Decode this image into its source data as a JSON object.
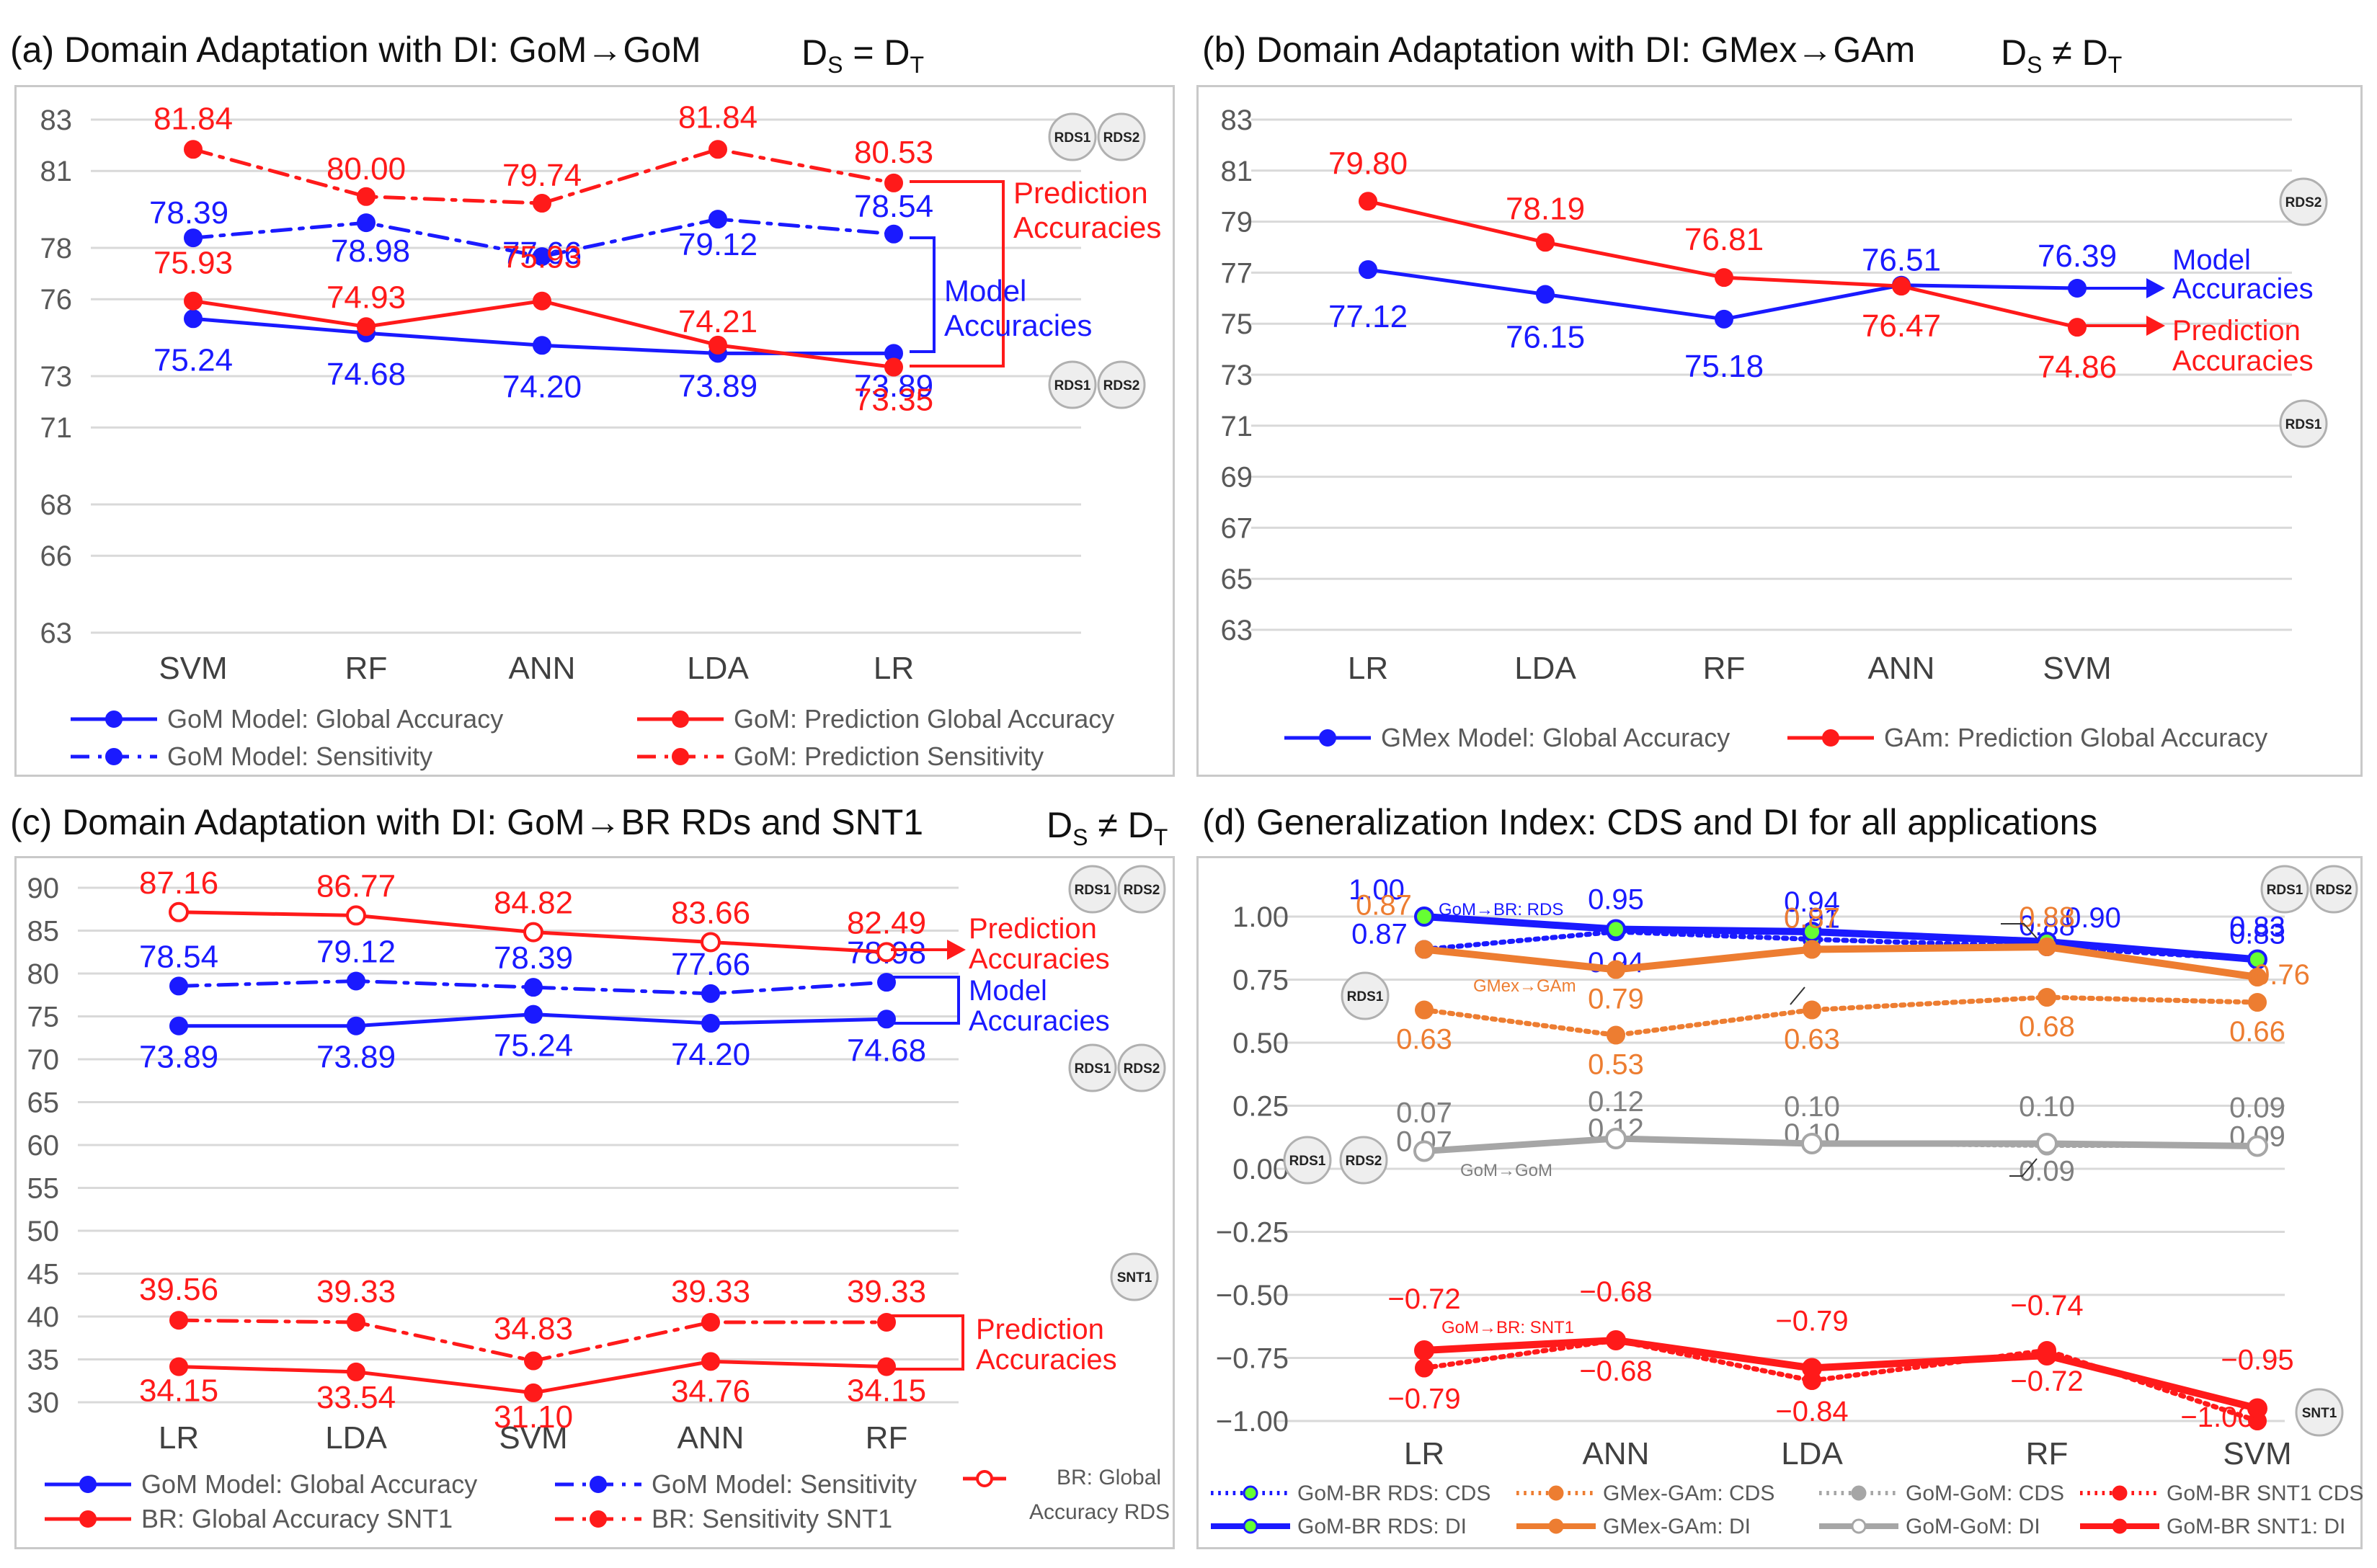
{
  "panels": {
    "a": {
      "title": "(a) Domain Adaptation with DI: GoM→GoM",
      "ds_label": "D",
      "ds_sub1": "S",
      "ds_rel": " = D",
      "ds_sub2": "T"
    },
    "b": {
      "title": "(b) Domain Adaptation with DI: GMex→GAm",
      "ds_label": "D",
      "ds_sub1": "S",
      "ds_rel": " ≠ D",
      "ds_sub2": "T"
    },
    "c": {
      "title": "(c) Domain Adaptation with DI: GoM→BR  RDs  and  SNT1",
      "ds_label": "D",
      "ds_sub1": "S",
      "ds_rel": " ≠ D",
      "ds_sub2": "T"
    },
    "d": {
      "title": "(d) Generalization Index: CDS and DI for all applications"
    }
  },
  "colors": {
    "blue": "#1a1aff",
    "red": "#ff1a1a",
    "orange": "#ed7d31",
    "gray": "#a6a6a6",
    "green": "#66ff33",
    "grid": "#d9d9d9",
    "text": "#595959"
  },
  "chart_data": [
    {
      "id": "a",
      "type": "line",
      "categories": [
        "SVM",
        "RF",
        "ANN",
        "LDA",
        "LR"
      ],
      "yticks": [
        "83",
        "81",
        "78",
        "76",
        "73",
        "71",
        "68",
        "66",
        "63"
      ],
      "ylim": [
        63,
        83
      ],
      "series": [
        {
          "name": "GoM Model: Global Accuracy",
          "color": "#1a1aff",
          "style": "solid",
          "values": [
            75.24,
            74.68,
            74.2,
            73.89,
            73.89
          ],
          "labels": [
            "75.24",
            "74.68",
            "74.20",
            "73.89",
            "73.89"
          ]
        },
        {
          "name": "GoM Model: Sensitivity",
          "color": "#1a1aff",
          "style": "dashdot",
          "values": [
            78.39,
            78.98,
            77.66,
            79.12,
            78.54
          ],
          "labels": [
            "78.39",
            "78.98",
            "77.66",
            "79.12",
            "78.54"
          ]
        },
        {
          "name": "GoM: Prediction Global Accuracy",
          "color": "#ff1a1a",
          "style": "solid",
          "values": [
            75.93,
            74.93,
            75.93,
            74.21,
            73.35
          ],
          "labels": [
            "75.93",
            "74.93",
            "75.93",
            "74.21",
            "73.35"
          ]
        },
        {
          "name": "GoM: Prediction Sensitivity",
          "color": "#ff1a1a",
          "style": "dashdot",
          "values": [
            81.84,
            80.0,
            79.74,
            81.84,
            80.53
          ],
          "labels": [
            "81.84",
            "80.00",
            "79.74",
            "81.84",
            "80.53"
          ]
        }
      ],
      "annotations": {
        "prediction": [
          "Prediction",
          "Accuracies"
        ],
        "model": [
          "Model",
          "Accuracies"
        ],
        "badges_top": [
          "RDS1",
          "RDS2"
        ],
        "badges_bottom": [
          "RDS1",
          "RDS2"
        ]
      }
    },
    {
      "id": "b",
      "type": "line",
      "categories": [
        "LR",
        "LDA",
        "RF",
        "ANN",
        "SVM"
      ],
      "yticks": [
        "83",
        "81",
        "79",
        "77",
        "75",
        "73",
        "71",
        "69",
        "67",
        "65",
        "63"
      ],
      "ylim": [
        63,
        83
      ],
      "series": [
        {
          "name": "GMex Model: Global Accuracy",
          "color": "#1a1aff",
          "style": "solid",
          "values": [
            77.12,
            76.15,
            75.18,
            76.51,
            76.39
          ],
          "labels": [
            "77.12",
            "76.15",
            "75.18",
            "76.51",
            "76.39"
          ]
        },
        {
          "name": "GAm: Prediction Global Accuracy",
          "color": "#ff1a1a",
          "style": "solid",
          "values": [
            79.8,
            78.19,
            76.81,
            76.47,
            74.86
          ],
          "labels": [
            "79.80",
            "78.19",
            "76.81",
            "76.47",
            "74.86"
          ]
        }
      ],
      "annotations": {
        "model": [
          "Model",
          "Accuracies"
        ],
        "prediction": [
          "Prediction",
          "Accuracies"
        ],
        "badge_top": "RDS2",
        "badge_bottom": "RDS1"
      }
    },
    {
      "id": "c",
      "type": "line",
      "categories": [
        "LR",
        "LDA",
        "SVM",
        "ANN",
        "RF"
      ],
      "yticks": [
        "90",
        "85",
        "80",
        "75",
        "70",
        "65",
        "60",
        "55",
        "50",
        "45",
        "40",
        "35",
        "30"
      ],
      "ylim": [
        30,
        90
      ],
      "series": [
        {
          "name": "GoM Model: Global Accuracy",
          "color": "#1a1aff",
          "style": "solid",
          "values": [
            73.89,
            73.89,
            75.24,
            74.2,
            74.68
          ],
          "labels": [
            "73.89",
            "73.89",
            "75.24",
            "74.20",
            "74.68"
          ]
        },
        {
          "name": "GoM Model: Sensitivity",
          "color": "#1a1aff",
          "style": "dashdot",
          "values": [
            78.54,
            79.12,
            78.39,
            77.66,
            78.98
          ],
          "labels": [
            "78.54",
            "79.12",
            "78.39",
            "77.66",
            "78.98"
          ]
        },
        {
          "name": "BR: Global Accuracy RDS",
          "color": "#ff1a1a",
          "style": "solid-open",
          "values": [
            87.16,
            86.77,
            84.82,
            83.66,
            82.49
          ],
          "labels": [
            "87.16",
            "86.77",
            "84.82",
            "83.66",
            "82.49"
          ]
        },
        {
          "name": "BR: Global Accuracy SNT1",
          "color": "#ff1a1a",
          "style": "solid",
          "values": [
            34.15,
            33.54,
            31.1,
            34.76,
            34.15
          ],
          "labels": [
            "34.15",
            "33.54",
            "31.10",
            "34.76",
            "34.15"
          ]
        },
        {
          "name": "BR: Sensitivity SNT1",
          "color": "#ff1a1a",
          "style": "dashdot",
          "values": [
            39.56,
            39.33,
            34.83,
            39.33,
            39.33
          ],
          "labels": [
            "39.56",
            "39.33",
            "34.83",
            "39.33",
            "39.33"
          ]
        }
      ],
      "legend": [
        "GoM Model: Global Accuracy",
        "GoM Model: Sensitivity",
        "BR: Global",
        "Accuracy RDS",
        "BR: Global Accuracy SNT1",
        "BR: Sensitivity SNT1"
      ],
      "annotations": {
        "prediction": [
          "Prediction",
          "Accuracies"
        ],
        "model": [
          "Model",
          "Accuracies"
        ],
        "prediction2": [
          "Prediction",
          "Accuracies"
        ],
        "badges_top": [
          "RDS1",
          "RDS2"
        ],
        "badges_mid": [
          "RDS1",
          "RDS2"
        ],
        "badge_snt": "SNT1"
      }
    },
    {
      "id": "d",
      "type": "line",
      "categories": [
        "LR",
        "ANN",
        "LDA",
        "RF",
        "SVM"
      ],
      "yticks": [
        "1.00",
        "0.75",
        "0.50",
        "0.25",
        "0.00",
        "−0.25",
        "−0.50",
        "−0.75",
        "−1.00"
      ],
      "ylim": [
        -1.0,
        1.0
      ],
      "series": [
        {
          "name": "GoM-BR RDS: CDS",
          "color": "#1a1aff",
          "style": "dotted-green",
          "values": [
            0.87,
            0.94,
            0.91,
            0.88,
            0.83
          ],
          "labels": [
            "0.87",
            "0.94",
            "0.91",
            "0.88",
            "0.83"
          ]
        },
        {
          "name": "GoM-BR RDS: DI",
          "color": "#1a1aff",
          "style": "thick-green",
          "values": [
            1.0,
            0.95,
            0.94,
            0.9,
            0.83
          ],
          "labels": [
            "1.00",
            "0.95",
            "0.94",
            "0.90",
            "0.83"
          ]
        },
        {
          "name": "GMex-GAm: CDS",
          "color": "#ed7d31",
          "style": "dotted",
          "values": [
            0.63,
            0.53,
            0.63,
            0.68,
            0.66
          ],
          "labels": [
            "0.63",
            "0.53",
            "0.63",
            "0.68",
            "0.66"
          ]
        },
        {
          "name": "GMex-GAm: DI",
          "color": "#ed7d31",
          "style": "thick",
          "values": [
            0.87,
            0.79,
            0.87,
            0.88,
            0.76
          ],
          "labels": [
            "0.87",
            "0.79",
            "0.87",
            "0.88",
            "0.76"
          ]
        },
        {
          "name": "GoM-GoM: CDS",
          "color": "#a6a6a6",
          "style": "dotted",
          "values": [
            0.07,
            0.12,
            0.1,
            0.09,
            0.09
          ],
          "labels": [
            "0.07",
            "0.12",
            "0.10",
            "0.09",
            "0.09"
          ]
        },
        {
          "name": "GoM-GoM: DI",
          "color": "#a6a6a6",
          "style": "thick-open",
          "values": [
            0.07,
            0.12,
            0.1,
            0.1,
            0.09
          ],
          "labels": [
            "0.07",
            "0.12",
            "0.10",
            "0.10",
            "0.09"
          ]
        },
        {
          "name": "GoM-BR SNT1 CDS",
          "color": "#ff1a1a",
          "style": "dotted",
          "values": [
            -0.79,
            -0.68,
            -0.84,
            -0.72,
            -1.0
          ],
          "labels": [
            "−0.79",
            "−0.68",
            "−0.84",
            "−0.72",
            "−1.00"
          ]
        },
        {
          "name": "GoM-BR SNT1: DI",
          "color": "#ff1a1a",
          "style": "thick",
          "values": [
            -0.72,
            -0.68,
            -0.79,
            -0.74,
            -0.95
          ],
          "labels": [
            "−0.72",
            "−0.68",
            "−0.79",
            "−0.74",
            "−0.95"
          ]
        }
      ],
      "annotations": {
        "br_rds": "GoM→BR: RDS",
        "gmex": "GMex→GAm",
        "gom": "GoM→GoM",
        "br_snt": "GoM→BR: SNT1",
        "badges_top": [
          "RDS1",
          "RDS2"
        ],
        "badge_rds1": "RDS1",
        "badges_zero": [
          "RDS1",
          "RDS2"
        ],
        "badge_snt": "SNT1"
      }
    }
  ]
}
